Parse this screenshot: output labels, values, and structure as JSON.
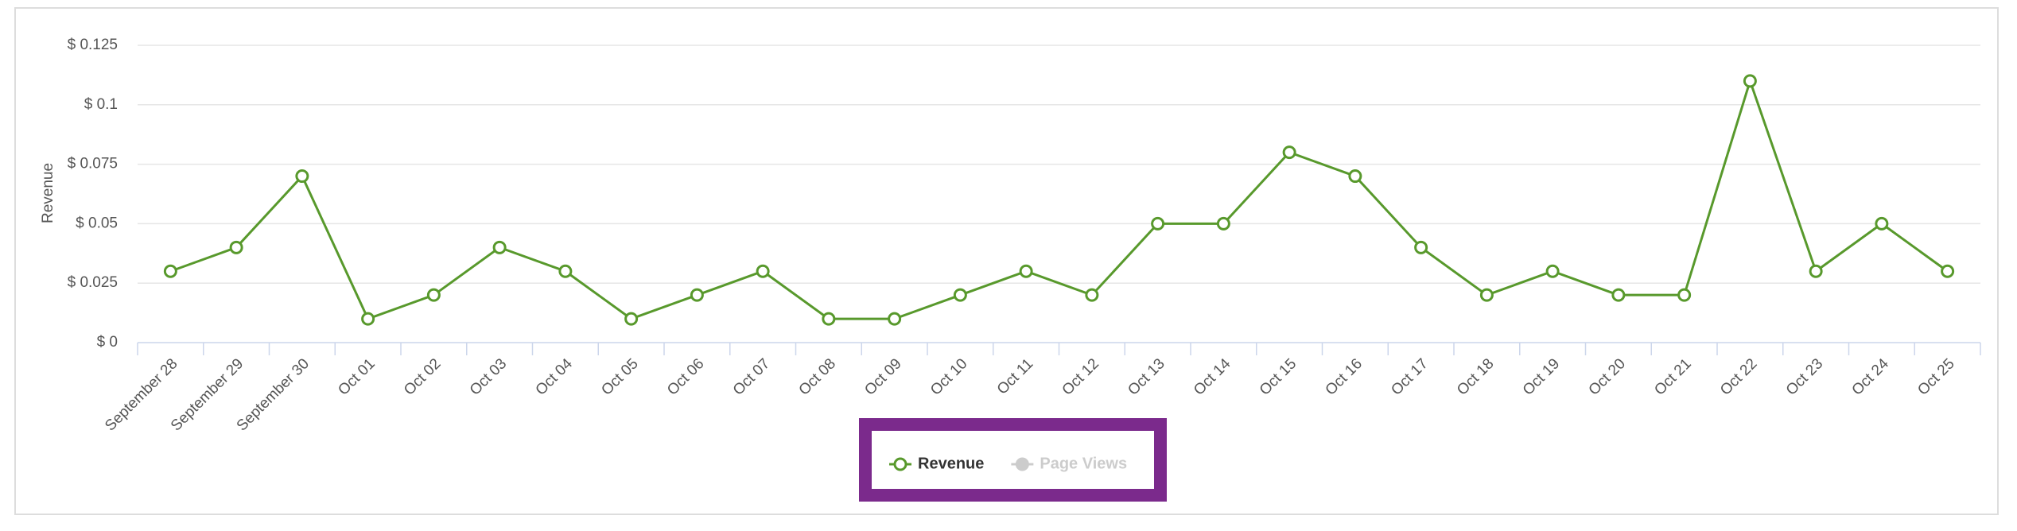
{
  "chart_data": {
    "type": "line",
    "y_axis_label": "Revenue",
    "categories": [
      "September 28",
      "September 29",
      "September 30",
      "Oct 01",
      "Oct 02",
      "Oct 03",
      "Oct 04",
      "Oct 05",
      "Oct 06",
      "Oct 07",
      "Oct 08",
      "Oct 09",
      "Oct 10",
      "Oct 11",
      "Oct 12",
      "Oct 13",
      "Oct 14",
      "Oct 15",
      "Oct 16",
      "Oct 17",
      "Oct 18",
      "Oct 19",
      "Oct 20",
      "Oct 21",
      "Oct 22",
      "Oct 23",
      "Oct 24",
      "Oct 25"
    ],
    "series": [
      {
        "name": "Revenue",
        "color": "#58992c",
        "values": [
          0.03,
          0.04,
          0.07,
          0.01,
          0.02,
          0.04,
          0.03,
          0.01,
          0.02,
          0.03,
          0.01,
          0.01,
          0.02,
          0.03,
          0.02,
          0.05,
          0.05,
          0.08,
          0.07,
          0.04,
          0.02,
          0.03,
          0.02,
          0.02,
          0.11,
          0.03,
          0.05,
          0.03
        ]
      }
    ],
    "hidden_series": [
      {
        "name": "Page Views",
        "color": "#cccccc"
      }
    ],
    "ylim": [
      0,
      0.125
    ],
    "yticks": [
      {
        "value": 0,
        "label": "$ 0"
      },
      {
        "value": 0.025,
        "label": "$ 0.025"
      },
      {
        "value": 0.05,
        "label": "$ 0.05"
      },
      {
        "value": 0.075,
        "label": "$ 0.075"
      },
      {
        "value": 0.1,
        "label": "$ 0.1"
      },
      {
        "value": 0.125,
        "label": "$ 0.125"
      }
    ],
    "grid": true,
    "legend": "bottom"
  }
}
